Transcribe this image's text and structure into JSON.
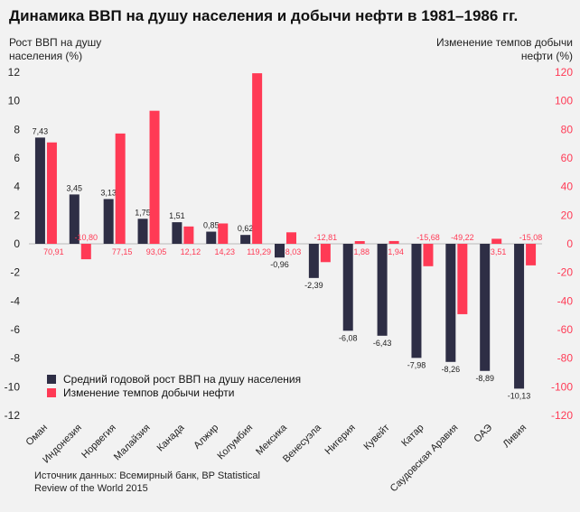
{
  "title": "Динамика ВВП на душу населения и добычи нефти в 1981–1986 гг.",
  "left_axis_label": "Рост ВВП на душу населения (%)",
  "right_axis_label": "Изменение темпов добычи нефти (%)",
  "source": "Источник данных: Всемирный банк, BP Statistical Review of the World 2015",
  "colors": {
    "gdp": "#2e2e45",
    "oil": "#ff3a55",
    "right_axis_text": "#ff3a55",
    "background": "#f2f2f2"
  },
  "chart_data": {
    "type": "bar",
    "title": "Динамика ВВП на душу населения и добычи нефти в 1981–1986 гг.",
    "categories": [
      "Оман",
      "Индонезия",
      "Норвегия",
      "Малайзия",
      "Канада",
      "Алжир",
      "Колумбия",
      "Мексика",
      "Венесуэла",
      "Нигерия",
      "Кувейт",
      "Катар",
      "Саудовская Аравия",
      "ОАЭ",
      "Ливия"
    ],
    "series": [
      {
        "name": "Средний годовой рост ВВП на душу населения",
        "axis": "left",
        "values": [
          7.43,
          3.45,
          3.13,
          1.75,
          1.51,
          0.85,
          0.62,
          -0.96,
          -2.39,
          -6.08,
          -6.43,
          -7.98,
          -8.26,
          -8.89,
          -10.13
        ],
        "labels": [
          "7,43",
          "3,45",
          "3,13",
          "1,75",
          "1,51",
          "0,85",
          "0,62",
          "-0,96",
          "-2,39",
          "-6,08",
          "-6,43",
          "-7,98",
          "-8,26",
          "-8,89",
          "-10,13"
        ]
      },
      {
        "name": "Изменение темпов добычи нефти",
        "axis": "right",
        "values": [
          70.91,
          -10.8,
          77.15,
          93.05,
          12.12,
          14.23,
          119.29,
          8.03,
          -12.81,
          1.88,
          1.94,
          -15.68,
          -49.22,
          3.51,
          -15.08
        ],
        "labels": [
          "70,91",
          "-10,80",
          "77,15",
          "93,05",
          "12,12",
          "14,23",
          "119,29",
          "8,03",
          "-12,81",
          "1,88",
          "1,94",
          "-15,68",
          "-49,22",
          "3,51",
          "-15,08"
        ]
      }
    ],
    "left_axis": {
      "ylim": [
        -12,
        12
      ],
      "ticks": [
        -12,
        -10,
        -8,
        -6,
        -4,
        -2,
        0,
        2,
        4,
        6,
        8,
        10,
        12
      ]
    },
    "right_axis": {
      "ylim": [
        -120,
        120
      ],
      "ticks": [
        -120,
        -100,
        -80,
        -60,
        -40,
        -20,
        0,
        20,
        40,
        60,
        80,
        100,
        120
      ]
    },
    "legend_position": "bottom-left",
    "grid": false
  }
}
